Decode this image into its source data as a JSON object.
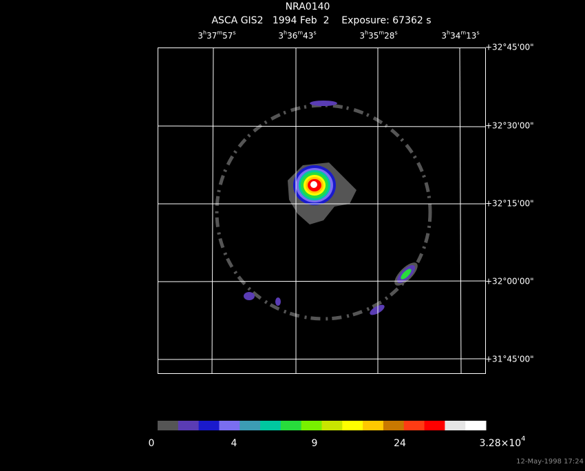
{
  "header": {
    "title": "NRA0140",
    "subtitle": "ASCA GIS2   1994 Feb  2    Exposure: 67362 s"
  },
  "ra_labels": [
    [
      "3",
      "h",
      "37",
      "m",
      "57",
      "s"
    ],
    [
      "3",
      "h",
      "36",
      "m",
      "43",
      "s"
    ],
    [
      "3",
      "h",
      "35",
      "m",
      "28",
      "s"
    ],
    [
      "3",
      "h",
      "34",
      "m",
      "13",
      "s"
    ]
  ],
  "dec_labels": [
    "+32°45'00\"",
    "+32°30'00\"",
    "+32°15'00\"",
    "+32°00'00\"",
    "+31°45'00\""
  ],
  "colorbar": {
    "colors": [
      "#555555",
      "#5a3cb4",
      "#1a1acc",
      "#7a6ef0",
      "#3c9cb4",
      "#00c8a0",
      "#28dc3c",
      "#78f000",
      "#c8e600",
      "#ffff00",
      "#ffc800",
      "#c87800",
      "#ff3c14",
      "#ff0000",
      "#e6e6e6",
      "#ffffff"
    ],
    "labels": [
      "0",
      "4",
      "9",
      "24"
    ],
    "max_label": {
      "base": "3.28×10",
      "exponent": "4"
    }
  },
  "timestamp": "12-May-1998 17:24"
}
